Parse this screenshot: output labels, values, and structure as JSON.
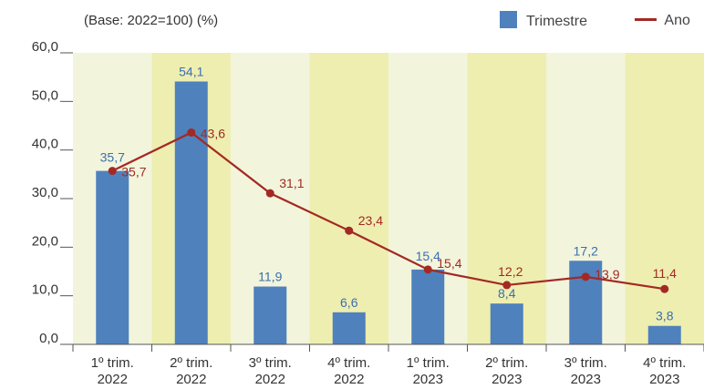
{
  "header": {
    "base_label": "(Base: 2022=100) (%)"
  },
  "chart_data": {
    "type": "bar",
    "categories": [
      [
        "1º trim.",
        "2022"
      ],
      [
        "2º trim.",
        "2022"
      ],
      [
        "3º trim.",
        "2022"
      ],
      [
        "4º trim.",
        "2022"
      ],
      [
        "1º trim.",
        "2023"
      ],
      [
        "2º trim.",
        "2023"
      ],
      [
        "3º trim.",
        "2023"
      ],
      [
        "4º trim.",
        "2023"
      ]
    ],
    "series": [
      {
        "name": "Trimestre",
        "kind": "bar",
        "color": "#4f81bd",
        "values": [
          35.7,
          54.1,
          11.9,
          6.6,
          15.4,
          8.4,
          17.2,
          3.8
        ],
        "labels": [
          "35,7",
          "54,1",
          "11,9",
          "6,6",
          "15,4",
          "8,4",
          "17,2",
          "3,8"
        ]
      },
      {
        "name": "Ano",
        "kind": "line",
        "color": "#a32924",
        "values": [
          35.7,
          43.6,
          31.1,
          23.4,
          15.4,
          12.2,
          13.9,
          11.4
        ],
        "labels": [
          "35,7",
          "43,6",
          "31,1",
          "23,4",
          "15,4",
          "12,2",
          "13,9",
          "11,4"
        ]
      }
    ],
    "ylim": [
      0,
      60
    ],
    "yticks": [
      "0,0",
      "10,0",
      "20,0",
      "30,0",
      "40,0",
      "50,0",
      "60,0"
    ],
    "band_colors": [
      "#f2f5dc",
      "#eeeeb0"
    ],
    "legend_position": "top-right"
  }
}
